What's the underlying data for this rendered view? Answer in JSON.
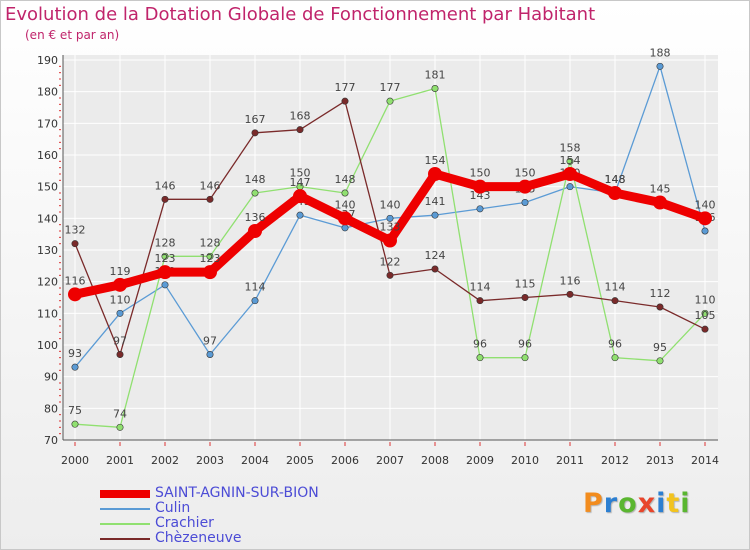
{
  "title": "Evolution de la Dotation Globale de Fonctionnement par Habitant",
  "subtitle": "(en € et par an)",
  "logo": {
    "text": "Proxiti",
    "colors": [
      "#f28c1e",
      "#2c7fd1",
      "#5ab630",
      "#e8452b",
      "#2c7fd1",
      "#f2c31e",
      "#5ab630"
    ]
  },
  "chart_data": {
    "type": "line",
    "x": [
      "2000",
      "2001",
      "2002",
      "2003",
      "2004",
      "2005",
      "2006",
      "2007",
      "2008",
      "2009",
      "2010",
      "2011",
      "2012",
      "2013",
      "2014"
    ],
    "ylim": [
      70,
      190
    ],
    "yticks": [
      70,
      80,
      90,
      100,
      110,
      120,
      130,
      140,
      150,
      160,
      170,
      180,
      190
    ],
    "grid": true,
    "series": [
      {
        "name": "Culin",
        "color": "#5b9bd5",
        "values": [
          93,
          110,
          119,
          97,
          114,
          141,
          137,
          140,
          141,
          143,
          145,
          150,
          148,
          188,
          136
        ],
        "labels": [
          "93",
          "110",
          "119",
          "97",
          "114",
          "141",
          "137",
          "140",
          "141",
          "143",
          "145",
          "150",
          "148",
          "188",
          "136"
        ]
      },
      {
        "name": "Crachier",
        "color": "#90e070",
        "values": [
          75,
          74,
          128,
          128,
          148,
          150,
          148,
          177,
          181,
          96,
          96,
          158,
          96,
          95,
          110
        ],
        "labels": [
          "75",
          "74",
          "128",
          "128",
          "148",
          "150",
          "148",
          "177",
          "181",
          "96",
          "96",
          "158",
          "96",
          "95",
          "110"
        ]
      },
      {
        "name": "Chèzeneuve",
        "color": "#7a2a2a",
        "values": [
          132,
          97,
          146,
          146,
          167,
          168,
          177,
          122,
          124,
          114,
          115,
          116,
          114,
          112,
          105
        ],
        "labels": [
          "132",
          "97",
          "146",
          "146",
          "167",
          "168",
          "177",
          "122",
          "124",
          "114",
          "115",
          "116",
          "114",
          "112",
          "105"
        ]
      },
      {
        "name": "SAINT-AGNIN-SUR-BION",
        "color": "#ee0000",
        "values": [
          116,
          119,
          123,
          123,
          136,
          147,
          140,
          133,
          154,
          150,
          150,
          154,
          148,
          145,
          140
        ],
        "labels": [
          "116",
          "119",
          "123",
          "123",
          "136",
          "147",
          "140",
          "133",
          "154",
          "150",
          "150",
          "154",
          "148",
          "145",
          "140"
        ]
      }
    ]
  }
}
